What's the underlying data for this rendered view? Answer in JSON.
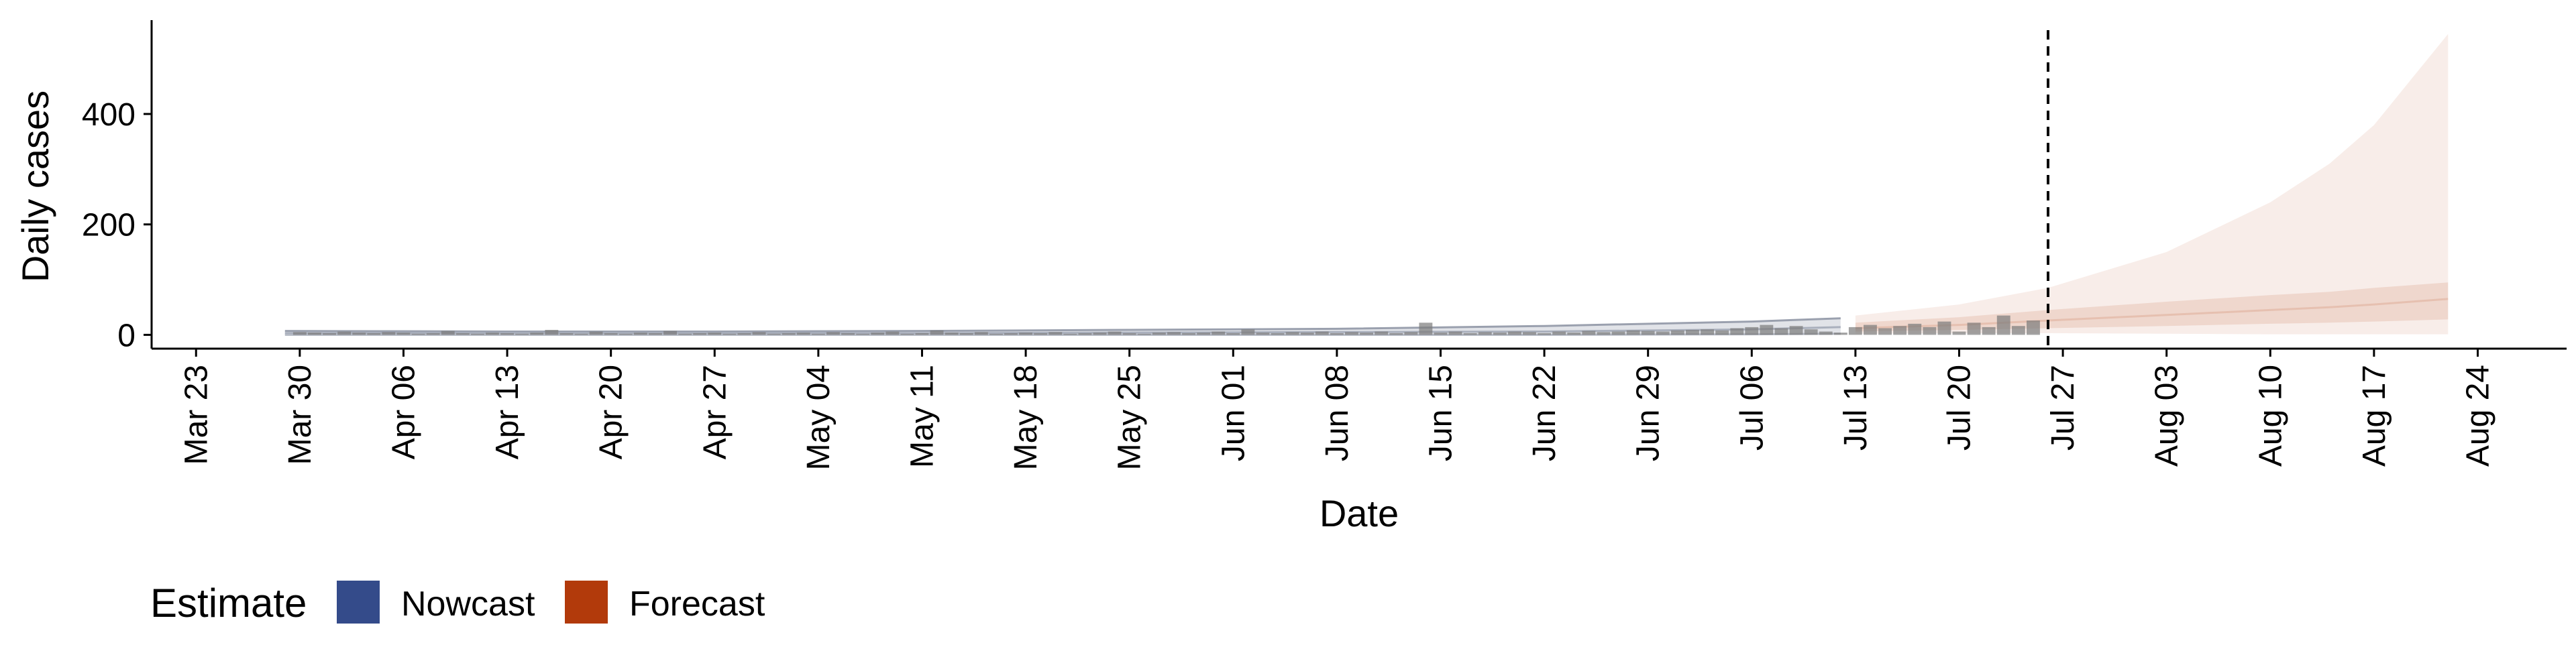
{
  "chart_data": {
    "type": "area",
    "xlabel": "Date",
    "ylabel": "Daily cases",
    "x_range": [
      "2020-03-20",
      "2020-08-30"
    ],
    "ylim": [
      -25,
      570
    ],
    "y_ticks": [
      0,
      200,
      400
    ],
    "x_ticks": [
      {
        "date": "2020-03-23",
        "label": "Mar 23"
      },
      {
        "date": "2020-03-30",
        "label": "Mar 30"
      },
      {
        "date": "2020-04-06",
        "label": "Apr 06"
      },
      {
        "date": "2020-04-13",
        "label": "Apr 13"
      },
      {
        "date": "2020-04-20",
        "label": "Apr 20"
      },
      {
        "date": "2020-04-27",
        "label": "Apr 27"
      },
      {
        "date": "2020-05-04",
        "label": "May 04"
      },
      {
        "date": "2020-05-11",
        "label": "May 11"
      },
      {
        "date": "2020-05-18",
        "label": "May 18"
      },
      {
        "date": "2020-05-25",
        "label": "May 25"
      },
      {
        "date": "2020-06-01",
        "label": "Jun 01"
      },
      {
        "date": "2020-06-08",
        "label": "Jun 08"
      },
      {
        "date": "2020-06-15",
        "label": "Jun 15"
      },
      {
        "date": "2020-06-22",
        "label": "Jun 22"
      },
      {
        "date": "2020-06-29",
        "label": "Jun 29"
      },
      {
        "date": "2020-07-06",
        "label": "Jul 06"
      },
      {
        "date": "2020-07-13",
        "label": "Jul 13"
      },
      {
        "date": "2020-07-20",
        "label": "Jul 20"
      },
      {
        "date": "2020-07-27",
        "label": "Jul 27"
      },
      {
        "date": "2020-08-03",
        "label": "Aug 03"
      },
      {
        "date": "2020-08-10",
        "label": "Aug 10"
      },
      {
        "date": "2020-08-17",
        "label": "Aug 17"
      },
      {
        "date": "2020-08-24",
        "label": "Aug 24"
      }
    ],
    "vline_date": "2020-07-26",
    "grid": false,
    "legend": {
      "title": "Estimate",
      "position": "bottom-left",
      "entries": [
        {
          "label": "Nowcast",
          "color": "#344b8a"
        },
        {
          "label": "Forecast",
          "color": "#b23a0b"
        }
      ]
    },
    "observed_cases": {
      "color": "#7a7a7a",
      "values": [
        [
          "2020-03-30",
          5
        ],
        [
          "2020-03-31",
          4
        ],
        [
          "2020-04-01",
          3
        ],
        [
          "2020-04-02",
          6
        ],
        [
          "2020-04-03",
          4
        ],
        [
          "2020-04-04",
          3
        ],
        [
          "2020-04-05",
          5
        ],
        [
          "2020-04-06",
          4
        ],
        [
          "2020-04-07",
          2
        ],
        [
          "2020-04-08",
          3
        ],
        [
          "2020-04-09",
          7
        ],
        [
          "2020-04-10",
          3
        ],
        [
          "2020-04-11",
          2
        ],
        [
          "2020-04-12",
          4
        ],
        [
          "2020-04-13",
          3
        ],
        [
          "2020-04-14",
          2
        ],
        [
          "2020-04-15",
          4
        ],
        [
          "2020-04-16",
          9
        ],
        [
          "2020-04-17",
          3
        ],
        [
          "2020-04-18",
          2
        ],
        [
          "2020-04-19",
          6
        ],
        [
          "2020-04-20",
          3
        ],
        [
          "2020-04-21",
          2
        ],
        [
          "2020-04-22",
          4
        ],
        [
          "2020-04-23",
          3
        ],
        [
          "2020-04-24",
          7
        ],
        [
          "2020-04-25",
          2
        ],
        [
          "2020-04-26",
          3
        ],
        [
          "2020-04-27",
          4
        ],
        [
          "2020-04-28",
          2
        ],
        [
          "2020-04-29",
          3
        ],
        [
          "2020-04-30",
          5
        ],
        [
          "2020-05-01",
          2
        ],
        [
          "2020-05-02",
          3
        ],
        [
          "2020-05-03",
          4
        ],
        [
          "2020-05-04",
          2
        ],
        [
          "2020-05-05",
          5
        ],
        [
          "2020-05-06",
          3
        ],
        [
          "2020-05-07",
          2
        ],
        [
          "2020-05-08",
          4
        ],
        [
          "2020-05-09",
          6
        ],
        [
          "2020-05-10",
          2
        ],
        [
          "2020-05-11",
          3
        ],
        [
          "2020-05-12",
          8
        ],
        [
          "2020-05-13",
          4
        ],
        [
          "2020-05-14",
          3
        ],
        [
          "2020-05-15",
          5
        ],
        [
          "2020-05-16",
          2
        ],
        [
          "2020-05-17",
          3
        ],
        [
          "2020-05-18",
          4
        ],
        [
          "2020-05-19",
          3
        ],
        [
          "2020-05-20",
          5
        ],
        [
          "2020-05-21",
          2
        ],
        [
          "2020-05-22",
          3
        ],
        [
          "2020-05-23",
          4
        ],
        [
          "2020-05-24",
          6
        ],
        [
          "2020-05-25",
          3
        ],
        [
          "2020-05-26",
          2
        ],
        [
          "2020-05-27",
          4
        ],
        [
          "2020-05-28",
          5
        ],
        [
          "2020-05-29",
          3
        ],
        [
          "2020-05-30",
          4
        ],
        [
          "2020-05-31",
          6
        ],
        [
          "2020-06-01",
          3
        ],
        [
          "2020-06-02",
          10
        ],
        [
          "2020-06-03",
          4
        ],
        [
          "2020-06-04",
          3
        ],
        [
          "2020-06-05",
          5
        ],
        [
          "2020-06-06",
          4
        ],
        [
          "2020-06-07",
          6
        ],
        [
          "2020-06-08",
          3
        ],
        [
          "2020-06-09",
          5
        ],
        [
          "2020-06-10",
          4
        ],
        [
          "2020-06-11",
          6
        ],
        [
          "2020-06-12",
          3
        ],
        [
          "2020-06-13",
          5
        ],
        [
          "2020-06-14",
          22
        ],
        [
          "2020-06-15",
          4
        ],
        [
          "2020-06-16",
          6
        ],
        [
          "2020-06-17",
          3
        ],
        [
          "2020-06-18",
          5
        ],
        [
          "2020-06-19",
          4
        ],
        [
          "2020-06-20",
          6
        ],
        [
          "2020-06-21",
          5
        ],
        [
          "2020-06-22",
          3
        ],
        [
          "2020-06-23",
          6
        ],
        [
          "2020-06-24",
          4
        ],
        [
          "2020-06-25",
          7
        ],
        [
          "2020-06-26",
          5
        ],
        [
          "2020-06-27",
          6
        ],
        [
          "2020-06-28",
          8
        ],
        [
          "2020-06-29",
          7
        ],
        [
          "2020-06-30",
          6
        ],
        [
          "2020-07-01",
          8
        ],
        [
          "2020-07-02",
          9
        ],
        [
          "2020-07-03",
          10
        ],
        [
          "2020-07-04",
          8
        ],
        [
          "2020-07-05",
          12
        ],
        [
          "2020-07-06",
          14
        ],
        [
          "2020-07-07",
          18
        ],
        [
          "2020-07-08",
          12
        ],
        [
          "2020-07-09",
          16
        ],
        [
          "2020-07-10",
          10
        ],
        [
          "2020-07-11",
          6
        ],
        [
          "2020-07-12",
          4
        ],
        [
          "2020-07-13",
          14
        ],
        [
          "2020-07-14",
          18
        ],
        [
          "2020-07-15",
          12
        ],
        [
          "2020-07-16",
          16
        ],
        [
          "2020-07-17",
          20
        ],
        [
          "2020-07-18",
          14
        ],
        [
          "2020-07-19",
          24
        ],
        [
          "2020-07-20",
          6
        ],
        [
          "2020-07-21",
          22
        ],
        [
          "2020-07-22",
          14
        ],
        [
          "2020-07-23",
          35
        ],
        [
          "2020-07-24",
          16
        ],
        [
          "2020-07-25",
          26
        ]
      ]
    },
    "nowcast": {
      "color": "#344b8a",
      "dates": [
        "2020-03-29",
        "2020-04-13",
        "2020-04-27",
        "2020-05-11",
        "2020-05-25",
        "2020-06-08",
        "2020-06-22",
        "2020-07-06",
        "2020-07-12"
      ],
      "lower": [
        0,
        0,
        0,
        0,
        0,
        0,
        0,
        1,
        2
      ],
      "median": [
        3,
        3,
        3,
        3,
        4,
        5,
        6,
        10,
        14
      ],
      "upper": [
        7,
        6,
        6,
        7,
        9,
        11,
        16,
        24,
        30
      ]
    },
    "forecast": {
      "color": "#b23a0b",
      "dates": [
        "2020-07-13",
        "2020-07-20",
        "2020-07-26",
        "2020-08-03",
        "2020-08-10",
        "2020-08-14",
        "2020-08-17",
        "2020-08-22"
      ],
      "lower": [
        2,
        3,
        3,
        2,
        1,
        1,
        1,
        1
      ],
      "median": [
        12,
        18,
        26,
        36,
        45,
        50,
        55,
        65
      ],
      "upper": [
        35,
        55,
        85,
        150,
        240,
        310,
        380,
        545
      ],
      "inner_lower": [
        6,
        9,
        12,
        16,
        20,
        22,
        24,
        28
      ],
      "inner_upper": [
        22,
        32,
        45,
        60,
        72,
        78,
        85,
        95
      ]
    }
  }
}
